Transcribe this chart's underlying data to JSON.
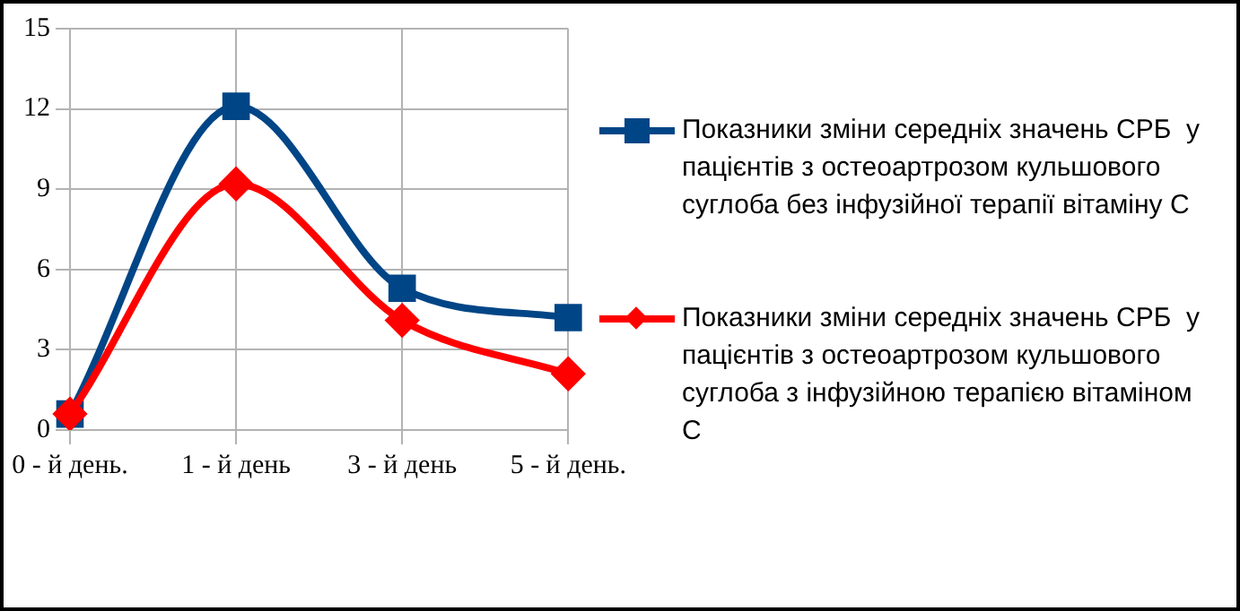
{
  "chart_data": {
    "type": "line",
    "categories": [
      "0 - й день.",
      "1 - й день",
      "3 - й день",
      "5 - й день."
    ],
    "series": [
      {
        "name": "Показники зміни середніх значень СРБ  у пацієнтів з остеоартрозом кульшового суглоба без інфузійної терапії вітаміну С",
        "color": "#004586",
        "marker": "square",
        "values": [
          0.6,
          12.1,
          5.3,
          4.2
        ]
      },
      {
        "name": "Показники зміни середніх значень СРБ  у пацієнтів з остеоартрозом кульшового суглоба з інфузійною терапією вітаміном С",
        "color": "#ff0000",
        "marker": "diamond",
        "values": [
          0.6,
          9.2,
          4.1,
          2.1
        ]
      }
    ],
    "ylim": [
      0,
      15
    ],
    "yticks": [
      0,
      3,
      6,
      9,
      12,
      15
    ],
    "grid": true,
    "legend": "right",
    "line_style": "solid"
  }
}
